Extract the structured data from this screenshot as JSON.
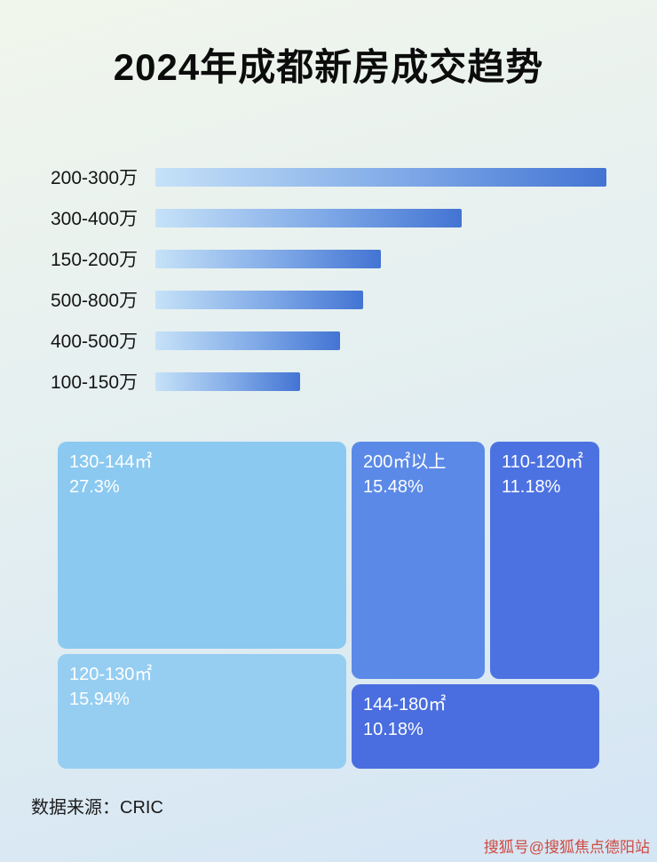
{
  "page": {
    "title": "2024年成都新房成交趋势"
  },
  "footer": {
    "source_label": "数据来源：CRIC"
  },
  "watermark": {
    "text": "搜狐号@搜狐焦点德阳站",
    "color": "#d03a2e"
  },
  "chart_data": [
    {
      "type": "bar",
      "orientation": "horizontal",
      "title": "2024年成都新房成交趋势",
      "categories": [
        "200-300万",
        "300-400万",
        "150-200万",
        "500-800万",
        "400-500万",
        "100-150万"
      ],
      "values": [
        100,
        68,
        50,
        46,
        41,
        32
      ],
      "value_axis": "unlabeled (bar lengths are relative %, no numeric labels shown)",
      "bar_gradient": [
        "#c6e2f8",
        "#4374d3"
      ],
      "grid": false,
      "legend": "none"
    },
    {
      "type": "treemap",
      "title": "",
      "value_suffix": "%",
      "items": [
        {
          "label": "130-144㎡",
          "value": 27.3,
          "color": "#8bc9f0"
        },
        {
          "label": "120-130㎡",
          "value": 15.94,
          "color": "#96cef2"
        },
        {
          "label": "200㎡以上",
          "value": 15.48,
          "color": "#5b89e7"
        },
        {
          "label": "110-120㎡",
          "value": 11.18,
          "color": "#4c72e2"
        },
        {
          "label": "144-180㎡",
          "value": 10.18,
          "color": "#4a6ee0"
        }
      ]
    }
  ]
}
